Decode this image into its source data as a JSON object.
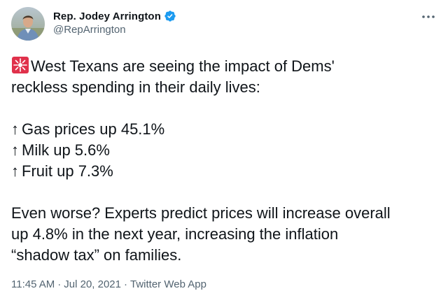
{
  "author": {
    "display_name": "Rep. Jodey Arrington",
    "handle": "@RepArrington",
    "verified": true
  },
  "icons": {
    "verified": "verified-badge-icon",
    "more": "more-horizontal-icon",
    "alarm": "police-car-light-emoji"
  },
  "tweet": {
    "lines": [
      "West Texans are seeing the impact of Dems'",
      "reckless spending in their daily lives:"
    ],
    "bullets": [
      {
        "arrow": "↑",
        "text": "Gas prices up 45.1%"
      },
      {
        "arrow": "↑",
        "text": "Milk up 5.6%"
      },
      {
        "arrow": "↑",
        "text": "Fruit up 7.3%"
      }
    ],
    "closing": [
      "Even worse? Experts predict prices will increase overall",
      "up 4.8% in the next year, increasing the inflation",
      "“shadow tax” on families."
    ]
  },
  "meta": {
    "time": "11:45 AM",
    "separator": "·",
    "date": "Jul 20, 2021",
    "source": "Twitter Web App"
  },
  "colors": {
    "text": "#0f1419",
    "secondary": "#536471",
    "verified": "#1d9bf0",
    "alarm": "#e0314b"
  }
}
